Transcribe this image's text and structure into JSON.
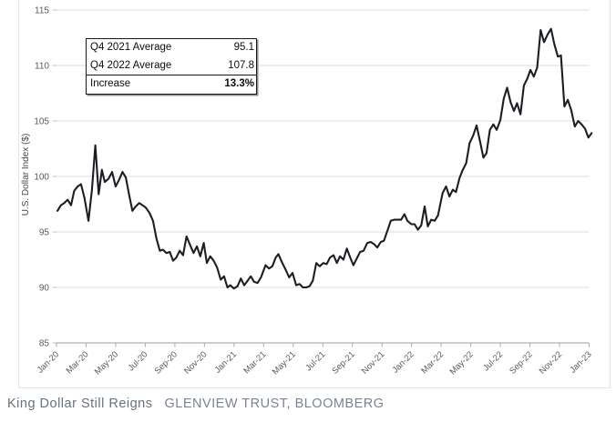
{
  "caption": {
    "title": "King Dollar Still Reigns",
    "source": "GLENVIEW TRUST, BLOOMBERG"
  },
  "chart_data": {
    "type": "line",
    "title": "",
    "xlabel": "",
    "ylabel": "U.S. Dollar Index ($)",
    "ylim": [
      85,
      115
    ],
    "y_ticks": [
      85,
      90,
      95,
      100,
      105,
      110,
      115
    ],
    "x_tick_labels": [
      "Jan-20",
      "Mar-20",
      "May-20",
      "Jul-20",
      "Sep-20",
      "Nov-20",
      "Jan-21",
      "Mar-21",
      "May-21",
      "Jul-21",
      "Sep-21",
      "Nov-21",
      "Jan-22",
      "Mar-22",
      "May-22",
      "Jul-22",
      "Sep-22",
      "Nov-22",
      "Jan-23"
    ],
    "grid": "on",
    "legend": "none",
    "line_color": "#1b1e23",
    "grid_color": "#dcdcdc",
    "axis_color": "#9e9e9e",
    "tick_label_color": "#595959",
    "annotation": {
      "rows": [
        {
          "label": "Q4 2021 Average",
          "value": "95.1"
        },
        {
          "label": "Q4 2022 Average",
          "value": "107.8"
        },
        {
          "label": "Increase",
          "value": "13.3%"
        }
      ]
    },
    "series": [
      {
        "name": "U.S. Dollar Index (weekly)",
        "dates": [
          "2020-01-03",
          "2020-01-10",
          "2020-01-17",
          "2020-01-24",
          "2020-01-31",
          "2020-02-07",
          "2020-02-14",
          "2020-02-21",
          "2020-02-28",
          "2020-03-06",
          "2020-03-13",
          "2020-03-20",
          "2020-03-27",
          "2020-04-03",
          "2020-04-09",
          "2020-04-17",
          "2020-04-24",
          "2020-05-01",
          "2020-05-08",
          "2020-05-15",
          "2020-05-22",
          "2020-05-29",
          "2020-06-05",
          "2020-06-12",
          "2020-06-19",
          "2020-06-26",
          "2020-07-02",
          "2020-07-10",
          "2020-07-17",
          "2020-07-24",
          "2020-07-31",
          "2020-08-07",
          "2020-08-14",
          "2020-08-21",
          "2020-08-28",
          "2020-09-04",
          "2020-09-11",
          "2020-09-18",
          "2020-09-25",
          "2020-10-02",
          "2020-10-09",
          "2020-10-16",
          "2020-10-23",
          "2020-10-30",
          "2020-11-06",
          "2020-11-13",
          "2020-11-20",
          "2020-11-27",
          "2020-12-04",
          "2020-12-11",
          "2020-12-18",
          "2020-12-24",
          "2020-12-31",
          "2021-01-08",
          "2021-01-15",
          "2021-01-22",
          "2021-01-29",
          "2021-02-05",
          "2021-02-12",
          "2021-02-19",
          "2021-02-26",
          "2021-03-05",
          "2021-03-12",
          "2021-03-19",
          "2021-03-26",
          "2021-04-01",
          "2021-04-09",
          "2021-04-16",
          "2021-04-23",
          "2021-04-30",
          "2021-05-07",
          "2021-05-14",
          "2021-05-21",
          "2021-05-28",
          "2021-06-04",
          "2021-06-11",
          "2021-06-18",
          "2021-06-25",
          "2021-07-02",
          "2021-07-09",
          "2021-07-16",
          "2021-07-23",
          "2021-07-30",
          "2021-08-06",
          "2021-08-13",
          "2021-08-20",
          "2021-08-27",
          "2021-09-03",
          "2021-09-10",
          "2021-09-17",
          "2021-09-24",
          "2021-10-01",
          "2021-10-08",
          "2021-10-15",
          "2021-10-22",
          "2021-10-29",
          "2021-11-05",
          "2021-11-12",
          "2021-11-19",
          "2021-11-26",
          "2021-12-03",
          "2021-12-10",
          "2021-12-17",
          "2021-12-23",
          "2021-12-31",
          "2022-01-07",
          "2022-01-14",
          "2022-01-21",
          "2022-01-28",
          "2022-02-04",
          "2022-02-11",
          "2022-02-18",
          "2022-02-25",
          "2022-03-04",
          "2022-03-11",
          "2022-03-18",
          "2022-03-25",
          "2022-04-01",
          "2022-04-08",
          "2022-04-14",
          "2022-04-22",
          "2022-04-29",
          "2022-05-06",
          "2022-05-13",
          "2022-05-20",
          "2022-05-27",
          "2022-06-03",
          "2022-06-10",
          "2022-06-17",
          "2022-06-24",
          "2022-07-01",
          "2022-07-08",
          "2022-07-15",
          "2022-07-22",
          "2022-07-29",
          "2022-08-05",
          "2022-08-12",
          "2022-08-19",
          "2022-08-26",
          "2022-09-02",
          "2022-09-09",
          "2022-09-16",
          "2022-09-23",
          "2022-09-30",
          "2022-10-07",
          "2022-10-14",
          "2022-10-21",
          "2022-10-28",
          "2022-11-04",
          "2022-11-11",
          "2022-11-18",
          "2022-11-25",
          "2022-12-02",
          "2022-12-09",
          "2022-12-16",
          "2022-12-23",
          "2022-12-30",
          "2023-01-06"
        ],
        "values": [
          96.9,
          97.4,
          97.6,
          97.9,
          97.4,
          98.7,
          99.1,
          99.3,
          98.1,
          96.0,
          98.8,
          102.8,
          98.4,
          100.6,
          99.5,
          99.8,
          100.4,
          99.1,
          99.7,
          100.4,
          99.9,
          98.3,
          96.9,
          97.3,
          97.6,
          97.4,
          97.2,
          96.7,
          96.0,
          94.4,
          93.3,
          93.4,
          93.1,
          93.2,
          92.4,
          92.7,
          93.3,
          92.9,
          94.6,
          93.8,
          93.1,
          93.7,
          92.8,
          94.0,
          92.2,
          92.8,
          92.4,
          91.8,
          90.7,
          91.0,
          90.0,
          90.2,
          89.9,
          90.1,
          90.8,
          90.2,
          90.6,
          91.0,
          90.5,
          90.4,
          90.9,
          92.0,
          91.7,
          91.9,
          92.7,
          93.0,
          92.2,
          91.6,
          90.9,
          91.3,
          90.2,
          90.3,
          90.0,
          90.0,
          90.1,
          90.6,
          92.2,
          91.9,
          92.2,
          92.1,
          92.7,
          92.9,
          92.2,
          92.8,
          92.5,
          93.5,
          92.7,
          92.0,
          92.6,
          93.2,
          93.3,
          94.0,
          94.1,
          93.9,
          93.6,
          94.1,
          94.2,
          95.1,
          96.0,
          96.1,
          96.1,
          96.1,
          96.6,
          96.0,
          95.7,
          95.7,
          95.2,
          95.6,
          97.3,
          95.5,
          96.1,
          96.0,
          96.5,
          98.5,
          99.1,
          98.2,
          98.8,
          98.6,
          99.8,
          100.5,
          101.2,
          103.0,
          103.7,
          104.6,
          103.2,
          101.7,
          102.1,
          104.2,
          104.7,
          104.2,
          105.1,
          107.0,
          108.0,
          106.7,
          105.9,
          106.6,
          105.6,
          108.2,
          108.8,
          109.6,
          109.0,
          109.8,
          113.2,
          112.1,
          112.8,
          113.3,
          111.9,
          110.8,
          110.9,
          106.3,
          106.9,
          106.0,
          104.5,
          105.0,
          104.7,
          104.3,
          103.5,
          103.9
        ]
      }
    ]
  }
}
